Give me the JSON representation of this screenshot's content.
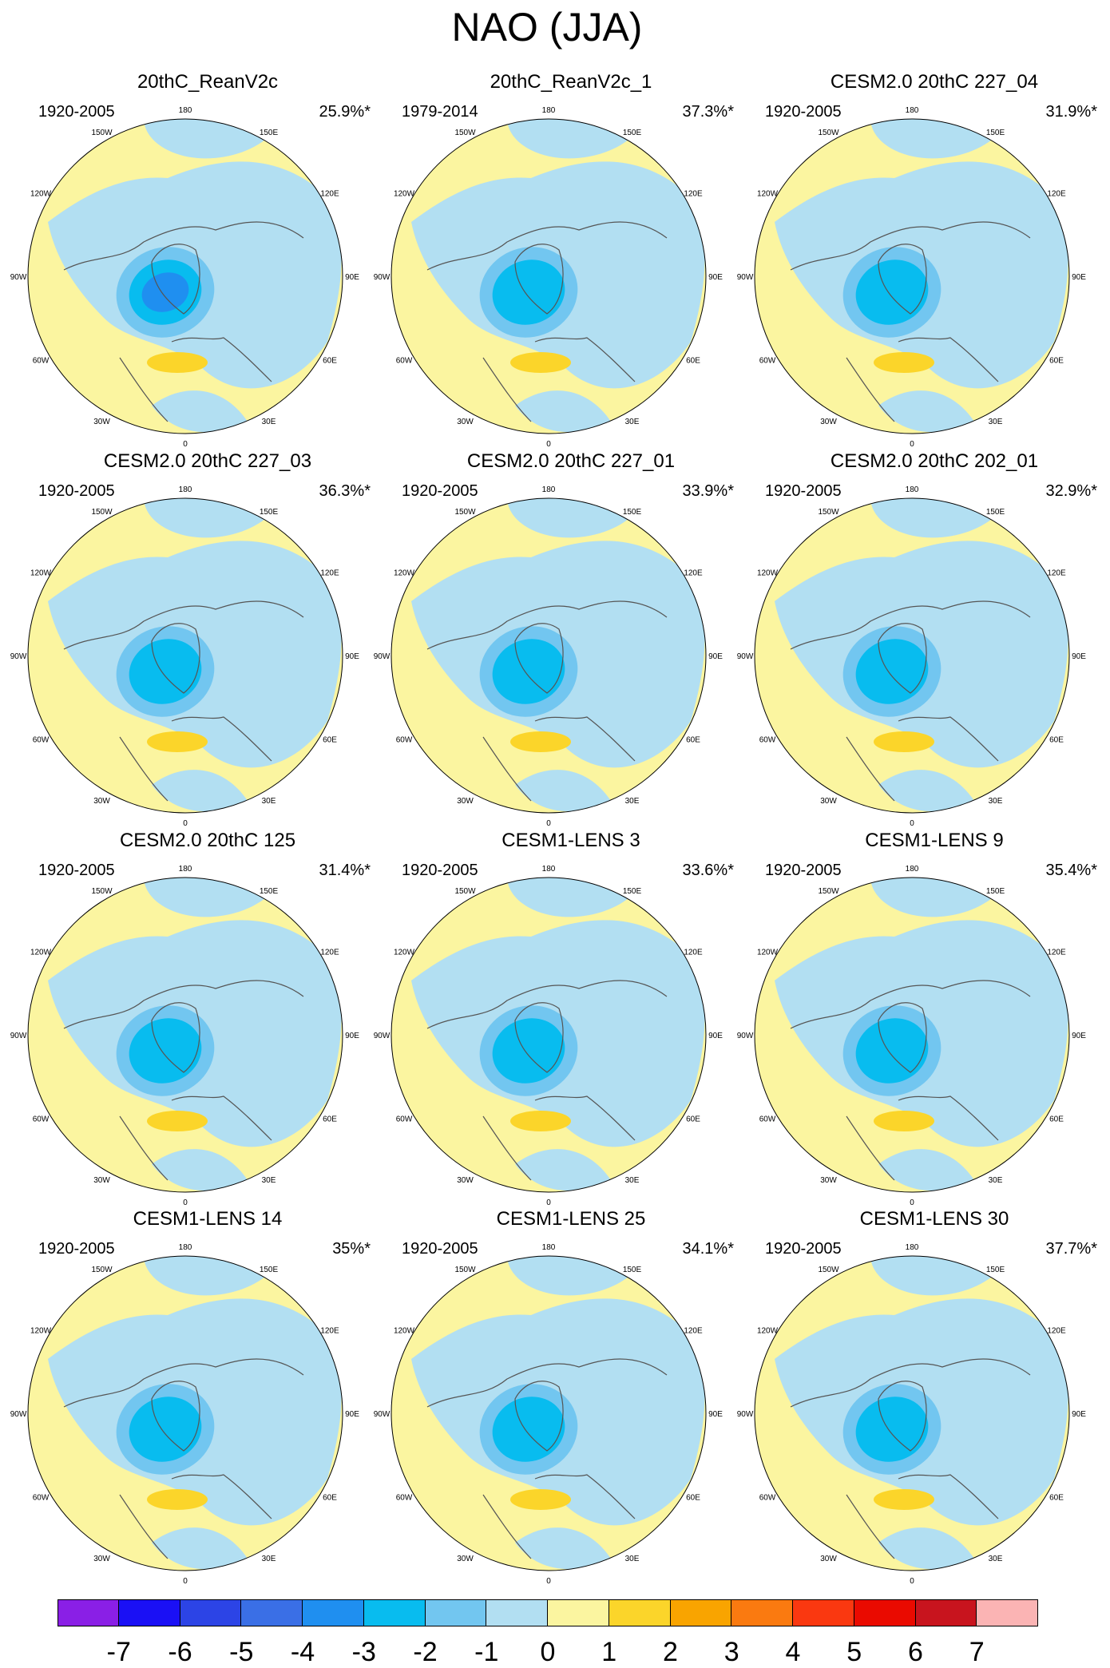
{
  "figure_title": "NAO (JJA)",
  "chart_data": {
    "type": "polar-contour-map",
    "title": "NAO (JJA)",
    "projection": "north polar stereographic",
    "longitude_labels": [
      "180",
      "150E",
      "120E",
      "90E",
      "60E",
      "30E",
      "0",
      "30W",
      "60W",
      "90W",
      "120W",
      "150W"
    ],
    "colorbar": {
      "ticks": [
        "-7",
        "-6",
        "-5",
        "-4",
        "-3",
        "-2",
        "-1",
        "0",
        "1",
        "2",
        "3",
        "4",
        "5",
        "6",
        "7"
      ],
      "colors": [
        "#8a1fe6",
        "#1a10f5",
        "#2c44e6",
        "#3a6fe6",
        "#1f8ff0",
        "#08bcef",
        "#72c6f0",
        "#b2dff2",
        "#fbf5a0",
        "#fbd52a",
        "#f9a400",
        "#fa7a10",
        "#fa3810",
        "#ea0a00",
        "#c8141e",
        "#fbb4b4"
      ]
    },
    "panels": [
      {
        "title": "20thC_ReanV2c",
        "period": "1920-2005",
        "variance": "25.9%*",
        "min": -4,
        "max": 2
      },
      {
        "title": "20thC_ReanV2c_1",
        "period": "1979-2014",
        "variance": "37.3%*",
        "min": -3,
        "max": 2
      },
      {
        "title": "CESM2.0 20thC 227_04",
        "period": "1920-2005",
        "variance": "31.9%*",
        "min": -3,
        "max": 2
      },
      {
        "title": "CESM2.0 20thC 227_03",
        "period": "1920-2005",
        "variance": "36.3%*",
        "min": -3,
        "max": 2
      },
      {
        "title": "CESM2.0 20thC 227_01",
        "period": "1920-2005",
        "variance": "33.9%*",
        "min": -3,
        "max": 2
      },
      {
        "title": "CESM2.0 20thC 202_01",
        "period": "1920-2005",
        "variance": "32.9%*",
        "min": -3,
        "max": 2
      },
      {
        "title": "CESM2.0 20thC 125",
        "period": "1920-2005",
        "variance": "31.4%*",
        "min": -3,
        "max": 2
      },
      {
        "title": "CESM1-LENS 3",
        "period": "1920-2005",
        "variance": "33.6%*",
        "min": -3,
        "max": 2
      },
      {
        "title": "CESM1-LENS 9",
        "period": "1920-2005",
        "variance": "35.4%*",
        "min": -3,
        "max": 2
      },
      {
        "title": "CESM1-LENS 14",
        "period": "1920-2005",
        "variance": "35%*",
        "min": -3,
        "max": 2
      },
      {
        "title": "CESM1-LENS 25",
        "period": "1920-2005",
        "variance": "34.1%*",
        "min": -3,
        "max": 2
      },
      {
        "title": "CESM1-LENS 30",
        "period": "1920-2005",
        "variance": "37.7%*",
        "min": -3,
        "max": 2
      }
    ]
  }
}
